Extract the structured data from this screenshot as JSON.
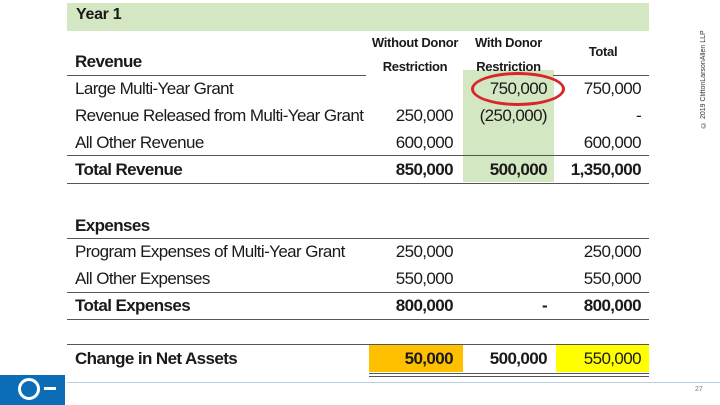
{
  "year_title": "Year 1",
  "copyright": "© 2019 CliftonLarsonAllen LLP",
  "page_number": "27",
  "columns": {
    "without": [
      "Without Donor",
      "Restriction"
    ],
    "with": [
      "With Donor",
      "Restriction"
    ],
    "total": "Total"
  },
  "revenue": {
    "heading": "Revenue",
    "rows": [
      {
        "label": "Large Multi-Year Grant",
        "without": "",
        "with": "750,000",
        "total": "750,000"
      },
      {
        "label": "Revenue Released from Multi-Year Grant",
        "without": "250,000",
        "with": "(250,000)",
        "total": "-"
      },
      {
        "label": "All Other Revenue",
        "without": "600,000",
        "with": "",
        "total": "600,000"
      }
    ],
    "total": {
      "label": "Total Revenue",
      "without": "850,000",
      "with": "500,000",
      "total": "1,350,000"
    }
  },
  "expenses": {
    "heading": "Expenses",
    "rows": [
      {
        "label": "Program Expenses of Multi-Year Grant",
        "without": "250,000",
        "with": "",
        "total": "250,000"
      },
      {
        "label": "All Other Expenses",
        "without": "550,000",
        "with": "",
        "total": "550,000"
      }
    ],
    "total": {
      "label": "Total Expenses",
      "without": "800,000",
      "with": "-",
      "total": "800,000"
    }
  },
  "net_assets": {
    "label": "Change in Net Assets",
    "without": "50,000",
    "with": "500,000",
    "total": "550,000"
  },
  "colors": {
    "header_green": "#d3e7c2",
    "highlight_orange": "#ffc000",
    "highlight_yellow": "#ffff00",
    "annotation_red": "#d8262b",
    "logo_blue": "#0a6db5"
  },
  "icons": {
    "logo": "cla-logo-icon"
  }
}
